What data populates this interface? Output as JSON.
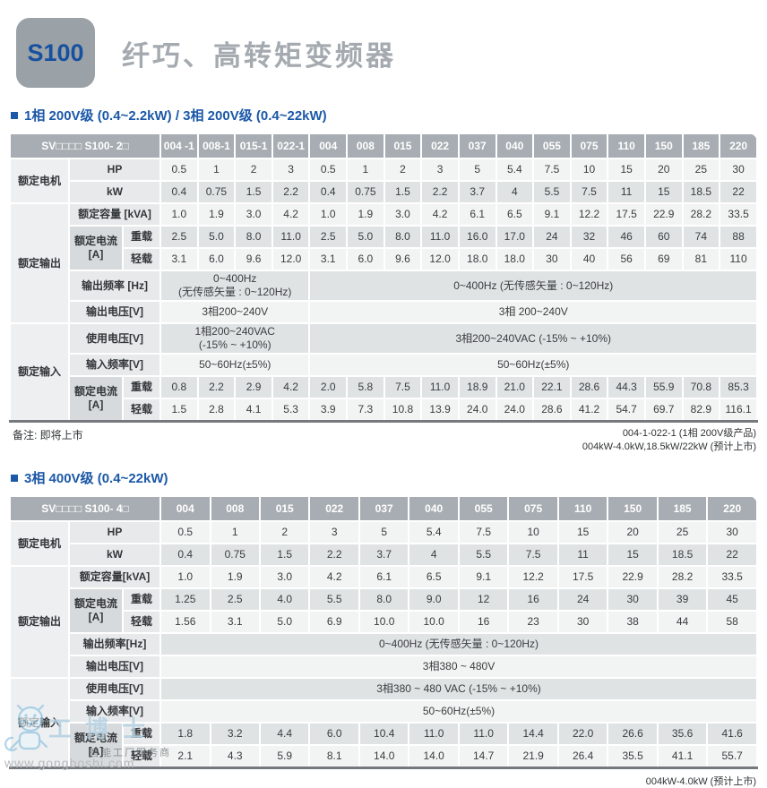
{
  "page": {
    "badge": "S100",
    "title": "纤巧、高转矩变频器",
    "colors": {
      "accent_blue": "#1b58a7",
      "badge_text_blue": "#16509f",
      "header_gray": "#a7adb2",
      "title_gray": "#a4aaaf"
    }
  },
  "section_headings": [
    "1相 200V级 (0.4~2.2kW) / 3相 200V级 (0.4~22kW)",
    "3相 400V级 (0.4~22kW)"
  ],
  "tables": [
    {
      "model": "SV□□□□ S100- 2□",
      "columns": [
        "004 -1",
        "008-1",
        "015-1",
        "022-1",
        "004",
        "008",
        "015",
        "022",
        "037",
        "040",
        "055",
        "075",
        "110",
        "150",
        "185",
        "220"
      ],
      "groups": [
        4,
        12
      ],
      "sections": [
        {
          "label": "额定电机",
          "rows": [
            {
              "label": "HP",
              "values": [
                "0.5",
                "1",
                "2",
                "3",
                "0.5",
                "1",
                "2",
                "3",
                "5",
                "5.4",
                "7.5",
                "10",
                "15",
                "20",
                "25",
                "30"
              ]
            },
            {
              "label": "kW",
              "values": [
                "0.4",
                "0.75",
                "1.5",
                "2.2",
                "0.4",
                "0.75",
                "1.5",
                "2.2",
                "3.7",
                "4",
                "5.5",
                "7.5",
                "11",
                "15",
                "18.5",
                "22"
              ]
            }
          ]
        },
        {
          "label": "额定输出",
          "rows": [
            {
              "label": "额定容量 [kVA]",
              "values": [
                "1.0",
                "1.9",
                "3.0",
                "4.2",
                "1.0",
                "1.9",
                "3.0",
                "4.2",
                "6.1",
                "6.5",
                "9.1",
                "12.2",
                "17.5",
                "22.9",
                "28.2",
                "33.5"
              ]
            },
            {
              "label": "额定电流\n[A]",
              "sub": [
                "重载",
                "轻载"
              ],
              "subvalues": [
                [
                  "2.5",
                  "5.0",
                  "8.0",
                  "11.0",
                  "2.5",
                  "5.0",
                  "8.0",
                  "11.0",
                  "16.0",
                  "17.0",
                  "24",
                  "32",
                  "46",
                  "60",
                  "74",
                  "88"
                ],
                [
                  "3.1",
                  "6.0",
                  "9.6",
                  "12.0",
                  "3.1",
                  "6.0",
                  "9.6",
                  "12.0",
                  "18.0",
                  "18.0",
                  "30",
                  "40",
                  "56",
                  "69",
                  "81",
                  "110"
                ]
              ]
            },
            {
              "label": "输出频率 [Hz]",
              "merged": [
                "0~400Hz\n(无传感矢量 : 0~120Hz)",
                "0~400Hz (无传感矢量 : 0~120Hz)"
              ]
            },
            {
              "label": "输出电压[V]",
              "merged": [
                "3相200~240V",
                "3相 200~240V"
              ]
            }
          ]
        },
        {
          "label": "额定输入",
          "rows": [
            {
              "label": "使用电压[V]",
              "merged": [
                "1相200~240VAC\n(-15% ~ +10%)",
                "3相200~240VAC (-15% ~ +10%)"
              ]
            },
            {
              "label": "输入频率[V]",
              "merged": [
                "50~60Hz(±5%)",
                "50~60Hz(±5%)"
              ]
            },
            {
              "label": "额定电流\n[A]",
              "sub": [
                "重载",
                "轻载"
              ],
              "subvalues": [
                [
                  "0.8",
                  "2.2",
                  "2.9",
                  "4.2",
                  "2.0",
                  "5.8",
                  "7.5",
                  "11.0",
                  "18.9",
                  "21.0",
                  "22.1",
                  "28.6",
                  "44.3",
                  "55.9",
                  "70.8",
                  "85.3"
                ],
                [
                  "1.5",
                  "2.8",
                  "4.1",
                  "5.3",
                  "3.9",
                  "7.3",
                  "10.8",
                  "13.9",
                  "24.0",
                  "24.0",
                  "28.6",
                  "41.2",
                  "54.7",
                  "69.7",
                  "82.9",
                  "116.1"
                ]
              ]
            }
          ]
        }
      ]
    },
    {
      "model": "SV□□□□ S100- 4□",
      "columns": [
        "004",
        "008",
        "015",
        "022",
        "037",
        "040",
        "055",
        "075",
        "110",
        "150",
        "185",
        "220"
      ],
      "groups": [
        12
      ],
      "sections": [
        {
          "label": "额定电机",
          "rows": [
            {
              "label": "HP",
              "values": [
                "0.5",
                "1",
                "2",
                "3",
                "5",
                "5.4",
                "7.5",
                "10",
                "15",
                "20",
                "25",
                "30"
              ]
            },
            {
              "label": "kW",
              "values": [
                "0.4",
                "0.75",
                "1.5",
                "2.2",
                "3.7",
                "4",
                "5.5",
                "7.5",
                "11",
                "15",
                "18.5",
                "22"
              ]
            }
          ]
        },
        {
          "label": "额定输出",
          "rows": [
            {
              "label": "额定容量[kVA]",
              "values": [
                "1.0",
                "1.9",
                "3.0",
                "4.2",
                "6.1",
                "6.5",
                "9.1",
                "12.2",
                "17.5",
                "22.9",
                "28.2",
                "33.5"
              ]
            },
            {
              "label": "额定电流\n[A]",
              "sub": [
                "重载",
                "轻载"
              ],
              "subvalues": [
                [
                  "1.25",
                  "2.5",
                  "4.0",
                  "5.5",
                  "8.0",
                  "9.0",
                  "12",
                  "16",
                  "24",
                  "30",
                  "39",
                  "45"
                ],
                [
                  "1.56",
                  "3.1",
                  "5.0",
                  "6.9",
                  "10.0",
                  "10.0",
                  "16",
                  "23",
                  "30",
                  "38",
                  "44",
                  "58"
                ]
              ]
            },
            {
              "label": "输出频率[Hz]",
              "merged": [
                "0~400Hz (无传感矢量 : 0~120Hz)"
              ]
            },
            {
              "label": "输出电压[V]",
              "merged": [
                "3相380 ~ 480V"
              ]
            }
          ]
        },
        {
          "label": "额定输入",
          "rows": [
            {
              "label": "使用电压[V]",
              "merged": [
                "3相380 ~ 480 VAC (-15% ~ +10%)"
              ]
            },
            {
              "label": "输入频率[V]",
              "merged": [
                "50~60Hz(±5%)"
              ]
            },
            {
              "label": "额定电流\n[A]",
              "sub": [
                "重载",
                "轻载"
              ],
              "subvalues": [
                [
                  "1.8",
                  "3.2",
                  "4.4",
                  "6.0",
                  "10.4",
                  "11.0",
                  "11.0",
                  "14.4",
                  "22.0",
                  "26.6",
                  "35.6",
                  "41.6"
                ],
                [
                  "2.1",
                  "4.3",
                  "5.9",
                  "8.1",
                  "14.0",
                  "14.0",
                  "14.7",
                  "21.9",
                  "26.4",
                  "35.5",
                  "41.1",
                  "55.7"
                ]
              ]
            }
          ]
        }
      ]
    }
  ],
  "notes": {
    "left": "备注: 即将上市",
    "t1_right": [
      "004-1-022-1 (1相 200V级产品)",
      "004kW-4.0kW,18.5kW/22kW (预计上市)"
    ],
    "t2_right": "004kW-4.0kW (预计上市)"
  },
  "watermark": {
    "brand": "工博士",
    "tagline": "智能工厂服务商",
    "url": "www.gongboshi.com"
  }
}
